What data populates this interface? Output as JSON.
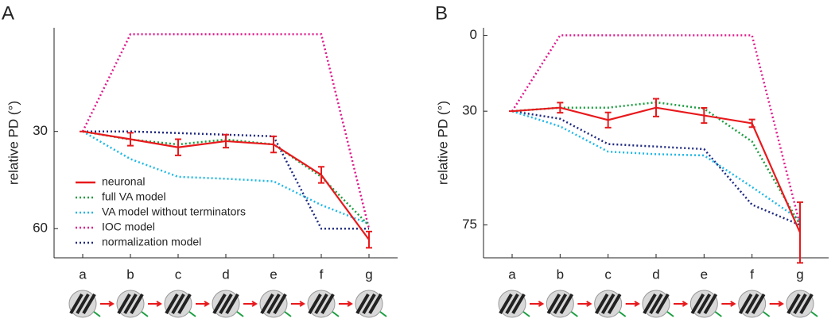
{
  "chart_data": [
    {
      "type": "line",
      "title": "A",
      "y_label": "relative PD (°)",
      "categories": [
        "a",
        "b",
        "c",
        "d",
        "e",
        "f",
        "g"
      ],
      "ylim": [
        -2,
        69
      ],
      "y_inverted": true,
      "yticks": [
        30,
        60
      ],
      "legend": "lower left",
      "series": [
        {
          "name": "neuronal",
          "color": "#e8191c",
          "style": "solid",
          "values": [
            30,
            32.4,
            34.9,
            33,
            34,
            43.4,
            63.4
          ],
          "errors": [
            0,
            2,
            2.5,
            2,
            2.5,
            2.5,
            2.5
          ]
        },
        {
          "name": "full VA model",
          "color": "#1a9e3f",
          "style": "dotted",
          "values": [
            30,
            32.5,
            34,
            32.5,
            34,
            44,
            59
          ]
        },
        {
          "name": "VA model without terminators",
          "color": "#1fb8e6",
          "style": "dotted",
          "values": [
            30,
            38.5,
            44,
            44.6,
            45.4,
            52.7,
            58.5
          ]
        },
        {
          "name": "IOC model",
          "color": "#e0198c",
          "style": "dotted",
          "values": [
            30,
            0,
            0,
            0,
            0,
            0,
            60
          ]
        },
        {
          "name": "normalization model",
          "color": "#1f2a80",
          "style": "dotted",
          "values": [
            30,
            30,
            30.5,
            31,
            31.5,
            60,
            60
          ]
        }
      ]
    },
    {
      "type": "line",
      "title": "B",
      "y_label": "relative PD (°)",
      "categories": [
        "a",
        "b",
        "c",
        "d",
        "e",
        "f",
        "g"
      ],
      "ylim": [
        -3,
        88
      ],
      "y_inverted": true,
      "yticks": [
        0,
        30,
        75
      ],
      "series": [
        {
          "color": "#e8191c",
          "style": "solid",
          "values": [
            30,
            28.6,
            33.5,
            28.6,
            31.7,
            34.8,
            78
          ],
          "errors": [
            0,
            2,
            3,
            3.5,
            3,
            1.5,
            12
          ]
        },
        {
          "color": "#1a9e3f",
          "style": "dotted",
          "values": [
            30,
            28.6,
            28.6,
            26.5,
            29,
            42,
            75
          ]
        },
        {
          "color": "#1fb8e6",
          "style": "dotted",
          "values": [
            30,
            36,
            46,
            47,
            47.5,
            60,
            73
          ]
        },
        {
          "color": "#e0198c",
          "style": "dotted",
          "values": [
            30,
            0,
            0,
            0,
            0,
            0,
            75
          ]
        },
        {
          "color": "#1f2a80",
          "style": "dotted",
          "values": [
            30,
            33,
            43,
            44,
            45,
            67,
            75
          ]
        }
      ]
    }
  ]
}
